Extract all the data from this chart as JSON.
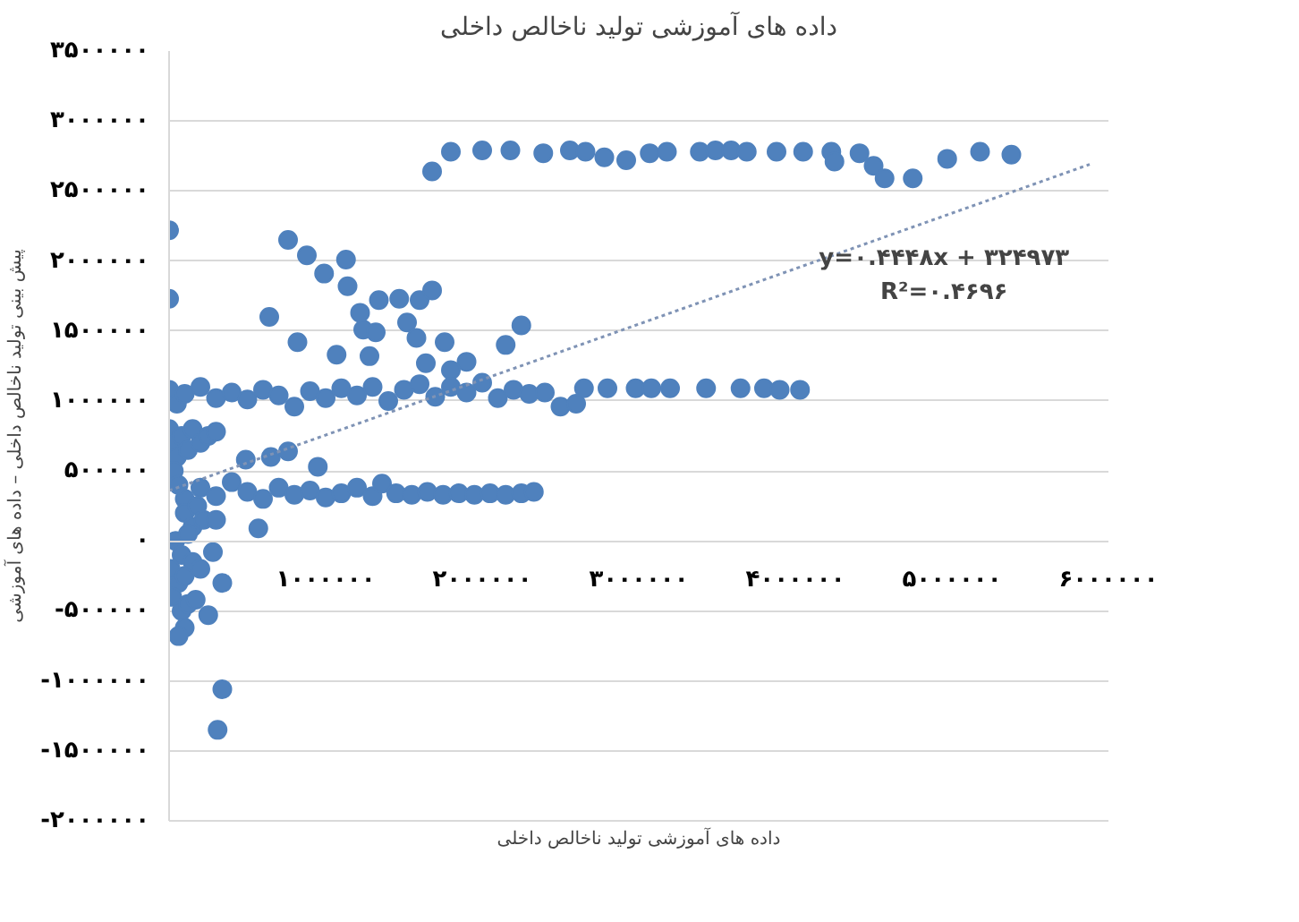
{
  "chart_data": {
    "type": "scatter",
    "title": "داده های آموزشی تولید ناخالص داخلی",
    "xlabel": "داده های آموزشی تولید ناخالص داخلی",
    "ylabel": "پیش بینی تولید ناخالص داخلی – داده های آموزشی",
    "annotations": [
      "y=۰.۴۴۴۸x + ۳۲۴۹۷۳",
      "R²=۰.۴۶۹۶"
    ],
    "xlim": [
      0,
      6000000
    ],
    "ylim": [
      -2000000,
      3500000
    ],
    "xticks": [
      {
        "value": 1000000,
        "label": "۱۰۰۰۰۰۰"
      },
      {
        "value": 2000000,
        "label": "۲۰۰۰۰۰۰"
      },
      {
        "value": 3000000,
        "label": "۳۰۰۰۰۰۰"
      },
      {
        "value": 4000000,
        "label": "۴۰۰۰۰۰۰"
      },
      {
        "value": 5000000,
        "label": "۵۰۰۰۰۰۰"
      },
      {
        "value": 6000000,
        "label": "۶۰۰۰۰۰۰"
      }
    ],
    "yticks": [
      {
        "value": -2000000,
        "label": "-۲۰۰۰۰۰۰"
      },
      {
        "value": -1500000,
        "label": "-۱۵۰۰۰۰۰"
      },
      {
        "value": -1000000,
        "label": "-۱۰۰۰۰۰۰"
      },
      {
        "value": -500000,
        "label": "-۵۰۰۰۰۰"
      },
      {
        "value": 0,
        "label": "۰"
      },
      {
        "value": 500000,
        "label": "۵۰۰۰۰۰"
      },
      {
        "value": 1000000,
        "label": "۱۰۰۰۰۰۰"
      },
      {
        "value": 1500000,
        "label": "۱۵۰۰۰۰۰"
      },
      {
        "value": 2000000,
        "label": "۲۰۰۰۰۰۰"
      },
      {
        "value": 2500000,
        "label": "۲۵۰۰۰۰۰"
      },
      {
        "value": 3000000,
        "label": "۳۰۰۰۰۰۰"
      },
      {
        "value": 3500000,
        "label": "۳۵۰۰۰۰۰"
      }
    ],
    "grid": "y",
    "series": [
      {
        "marker": "circle",
        "color": "#4f81bd",
        "x": [
          1680000,
          1800000,
          2000000,
          2180000,
          2390000,
          2560000,
          2660000,
          2780000,
          2920000,
          3070000,
          3180000,
          3390000,
          3490000,
          3590000,
          3690000,
          3880000,
          4050000,
          4230000,
          4250000,
          4410000,
          4500000,
          4570000,
          4750000,
          4970000,
          5180000,
          5380000,
          0,
          0,
          760000,
          880000,
          990000,
          1130000,
          1140000,
          1220000,
          1340000,
          1470000,
          1600000,
          1680000,
          1520000,
          1580000,
          1760000,
          2250000,
          2150000,
          640000,
          820000,
          1070000,
          1240000,
          1320000,
          1280000,
          1640000,
          1900000,
          1800000,
          0,
          50000,
          100000,
          200000,
          300000,
          400000,
          500000,
          600000,
          700000,
          800000,
          900000,
          1000000,
          1100000,
          1200000,
          1300000,
          1400000,
          1500000,
          1600000,
          1700000,
          1800000,
          1900000,
          2000000,
          2100000,
          2200000,
          2300000,
          2400000,
          2500000,
          2600000,
          2650000,
          2800000,
          2980000,
          3080000,
          3200000,
          3430000,
          3650000,
          3800000,
          3900000,
          4030000,
          100000,
          200000,
          300000,
          400000,
          500000,
          600000,
          700000,
          800000,
          900000,
          1000000,
          1100000,
          1200000,
          1300000,
          1360000,
          1450000,
          1550000,
          1650000,
          1750000,
          1850000,
          1950000,
          2050000,
          2150000,
          2250000,
          2330000,
          490000,
          650000,
          760000,
          950000,
          570000,
          0,
          20000,
          50000,
          80000,
          120000,
          150000,
          200000,
          250000,
          300000,
          30000,
          60000,
          100000,
          150000,
          40000,
          80000,
          120000,
          180000,
          220000,
          10000,
          60000,
          100000,
          150000,
          200000,
          280000,
          300000,
          340000,
          20000,
          80000,
          120000,
          170000,
          250000,
          100000,
          60000,
          340000,
          310000
        ],
        "values": [
          2640000,
          2780000,
          2790000,
          2790000,
          2770000,
          2790000,
          2780000,
          2740000,
          2720000,
          2770000,
          2780000,
          2780000,
          2790000,
          2790000,
          2780000,
          2780000,
          2780000,
          2780000,
          2710000,
          2770000,
          2680000,
          2590000,
          2590000,
          2730000,
          2780000,
          2760000,
          2220000,
          1730000,
          2150000,
          2040000,
          1910000,
          2010000,
          1820000,
          1630000,
          1720000,
          1730000,
          1720000,
          1790000,
          1560000,
          1450000,
          1420000,
          1540000,
          1400000,
          1600000,
          1420000,
          1330000,
          1510000,
          1490000,
          1320000,
          1270000,
          1280000,
          1220000,
          1080000,
          980000,
          1050000,
          1100000,
          1020000,
          1060000,
          1010000,
          1080000,
          1040000,
          960000,
          1070000,
          1020000,
          1090000,
          1040000,
          1100000,
          1000000,
          1080000,
          1120000,
          1030000,
          1100000,
          1060000,
          1130000,
          1020000,
          1080000,
          1050000,
          1060000,
          960000,
          980000,
          1090000,
          1090000,
          1090000,
          1090000,
          1090000,
          1090000,
          1090000,
          1090000,
          1080000,
          1080000,
          300000,
          380000,
          320000,
          420000,
          350000,
          300000,
          380000,
          330000,
          360000,
          310000,
          340000,
          380000,
          320000,
          410000,
          340000,
          330000,
          350000,
          330000,
          340000,
          330000,
          340000,
          330000,
          340000,
          350000,
          580000,
          600000,
          640000,
          530000,
          90000,
          800000,
          700000,
          600000,
          750000,
          650000,
          800000,
          700000,
          750000,
          780000,
          500000,
          400000,
          200000,
          100000,
          0,
          -100000,
          50000,
          250000,
          150000,
          -200000,
          -300000,
          -250000,
          -150000,
          -200000,
          -80000,
          150000,
          -300000,
          -400000,
          -500000,
          -450000,
          -420000,
          -530000,
          -620000,
          -680000,
          -1060000,
          -1350000
        ]
      },
      {
        "type": "line",
        "color": "#7f93b5",
        "line_style": "dotted",
        "x": [
          0,
          5880000
        ],
        "values": [
          360000,
          2690000
        ]
      }
    ]
  }
}
